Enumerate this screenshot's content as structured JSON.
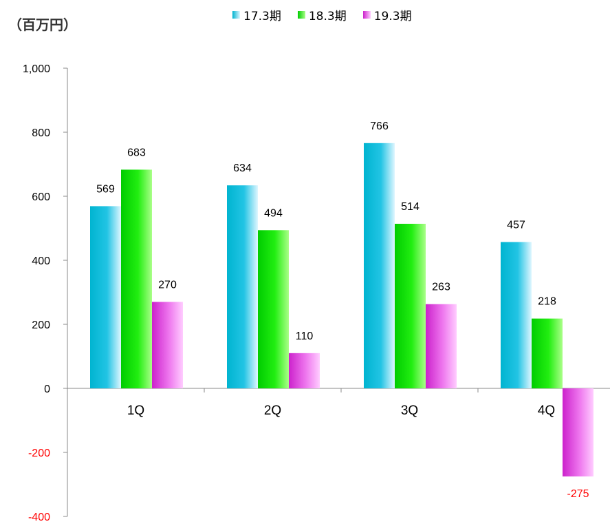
{
  "unit_label": "（百万円）",
  "legend": [
    {
      "label": "17.3期"
    },
    {
      "label": "18.3期"
    },
    {
      "label": "19.3期"
    }
  ],
  "colors": {
    "s1_dark": "#00b4d0",
    "s1_light": "#dff6ff",
    "s2_dark": "#00cc00",
    "s2_light": "#aaff88",
    "s3_dark": "#cc22cc",
    "s3_light": "#ffccff",
    "axis": "#888888",
    "negative_text": "#ff0000"
  },
  "chart_data": {
    "type": "bar",
    "categories": [
      "1Q",
      "2Q",
      "3Q",
      "4Q"
    ],
    "series": [
      {
        "name": "17.3期",
        "values": [
          569,
          634,
          766,
          457
        ]
      },
      {
        "name": "18.3期",
        "values": [
          683,
          494,
          514,
          218
        ]
      },
      {
        "name": "19.3期",
        "values": [
          270,
          110,
          263,
          -275
        ]
      }
    ],
    "ylim": [
      -400,
      1000
    ],
    "yticks": [
      -400,
      -200,
      0,
      200,
      400,
      600,
      800,
      1000
    ],
    "ytick_labels": [
      "-400",
      "-200",
      "0",
      "200",
      "400",
      "600",
      "800",
      "1,000"
    ],
    "xlabel": "",
    "ylabel": "（百万円）",
    "grid": false,
    "legend_position": "top"
  }
}
